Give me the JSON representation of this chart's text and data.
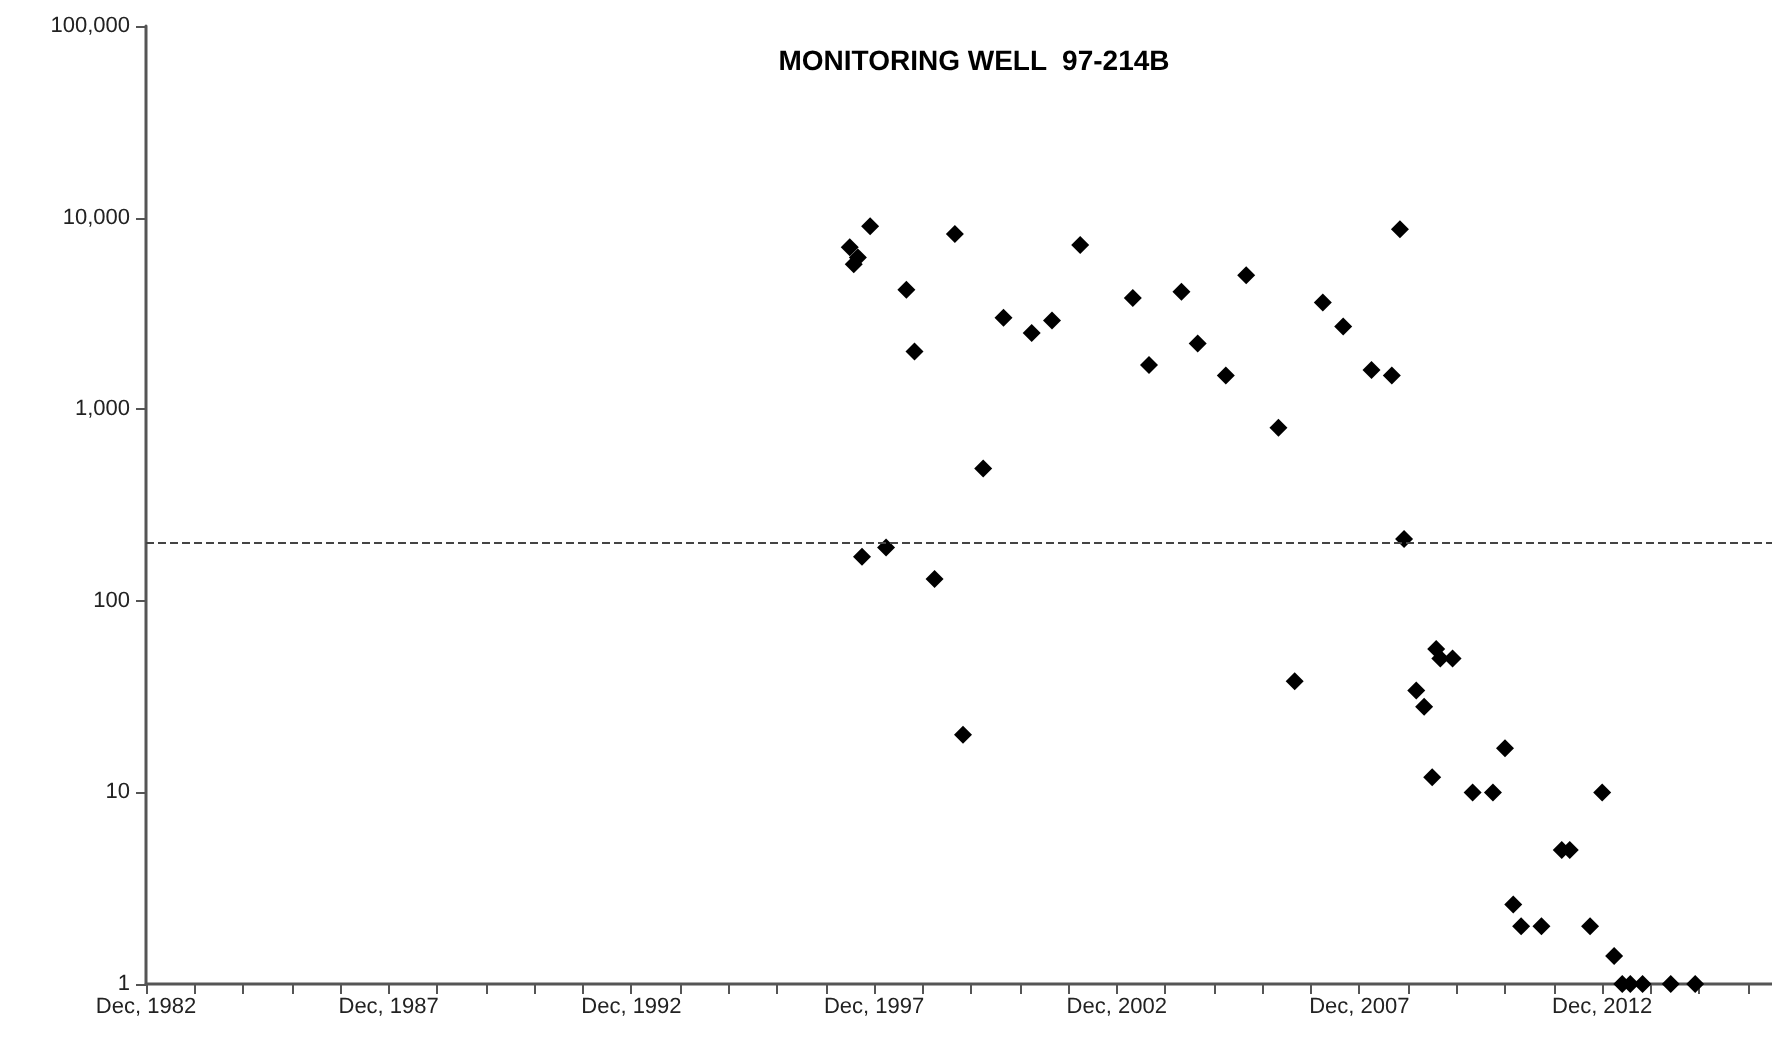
{
  "chart_data": {
    "type": "scatter",
    "title": "MONITORING WELL  97-214B",
    "x": [
      "1997-06",
      "1997-08",
      "1997-07",
      "1997-09",
      "1997-11",
      "1998-03",
      "1998-08",
      "1998-10",
      "1999-03",
      "1999-08",
      "1999-10",
      "2000-03",
      "2000-08",
      "2001-03",
      "2001-08",
      "2002-03",
      "2003-04",
      "2003-08",
      "2004-04",
      "2004-08",
      "2005-03",
      "2005-08",
      "2006-04",
      "2006-08",
      "2007-03",
      "2007-08",
      "2008-03",
      "2008-08",
      "2008-10",
      "2008-11",
      "2009-02",
      "2009-04",
      "2009-06",
      "2009-07",
      "2009-08",
      "2009-11",
      "2010-04",
      "2010-09",
      "2010-12",
      "2011-02",
      "2011-04",
      "2011-09",
      "2012-02",
      "2012-04",
      "2012-09",
      "2012-12",
      "2013-03",
      "2013-05",
      "2013-07",
      "2013-10",
      "2014-05",
      "2014-11"
    ],
    "values": [
      7000,
      6200,
      5700,
      170,
      9000,
      190,
      4200,
      2000,
      130,
      8200,
      20,
      490,
      3000,
      2500,
      2900,
      7200,
      3800,
      1700,
      4100,
      2200,
      1500,
      5000,
      800,
      38,
      3600,
      2700,
      1600,
      1500,
      8700,
      210,
      34,
      28,
      12,
      56,
      50,
      50,
      10,
      10,
      17,
      2.6,
      2,
      2,
      5,
      5,
      2,
      10,
      1.4,
      1,
      1,
      1,
      1,
      1
    ],
    "color": "#000000",
    "marker": "diamond",
    "log": "y",
    "grid": false,
    "xlim": [
      "1982-12",
      "2016-06"
    ],
    "xticks": [
      {
        "value": "1982-12",
        "label": "Dec, 1982"
      },
      {
        "value": "1983-12",
        "label": null
      },
      {
        "value": "1984-12",
        "label": null
      },
      {
        "value": "1985-12",
        "label": null
      },
      {
        "value": "1986-12",
        "label": null
      },
      {
        "value": "1987-12",
        "label": "Dec, 1987"
      },
      {
        "value": "1988-12",
        "label": null
      },
      {
        "value": "1989-12",
        "label": null
      },
      {
        "value": "1990-12",
        "label": null
      },
      {
        "value": "1991-12",
        "label": null
      },
      {
        "value": "1992-12",
        "label": "Dec, 1992"
      },
      {
        "value": "1993-12",
        "label": null
      },
      {
        "value": "1994-12",
        "label": null
      },
      {
        "value": "1995-12",
        "label": null
      },
      {
        "value": "1996-12",
        "label": null
      },
      {
        "value": "1997-12",
        "label": "Dec, 1997"
      },
      {
        "value": "1998-12",
        "label": null
      },
      {
        "value": "1999-12",
        "label": null
      },
      {
        "value": "2000-12",
        "label": null
      },
      {
        "value": "2001-12",
        "label": null
      },
      {
        "value": "2002-12",
        "label": "Dec, 2002"
      },
      {
        "value": "2003-12",
        "label": null
      },
      {
        "value": "2004-12",
        "label": null
      },
      {
        "value": "2005-12",
        "label": null
      },
      {
        "value": "2006-12",
        "label": null
      },
      {
        "value": "2007-12",
        "label": "Dec, 2007"
      },
      {
        "value": "2008-12",
        "label": null
      },
      {
        "value": "2009-12",
        "label": null
      },
      {
        "value": "2010-12",
        "label": null
      },
      {
        "value": "2011-12",
        "label": null
      },
      {
        "value": "2012-12",
        "label": "Dec, 2012"
      },
      {
        "value": "2013-12",
        "label": null
      },
      {
        "value": "2014-12",
        "label": null
      },
      {
        "value": "2015-12",
        "label": null
      }
    ],
    "ylim": [
      1,
      100000
    ],
    "yticks": [
      1,
      10,
      100,
      {
        "value": 1000,
        "label": "1,000"
      },
      {
        "value": 10000,
        "label": "10,000"
      },
      {
        "value": 100000,
        "label": "100,000"
      }
    ],
    "ref_lines": [
      {
        "axis": "y",
        "value": 200,
        "color": "#444444",
        "line_style": "dashed"
      }
    ]
  }
}
